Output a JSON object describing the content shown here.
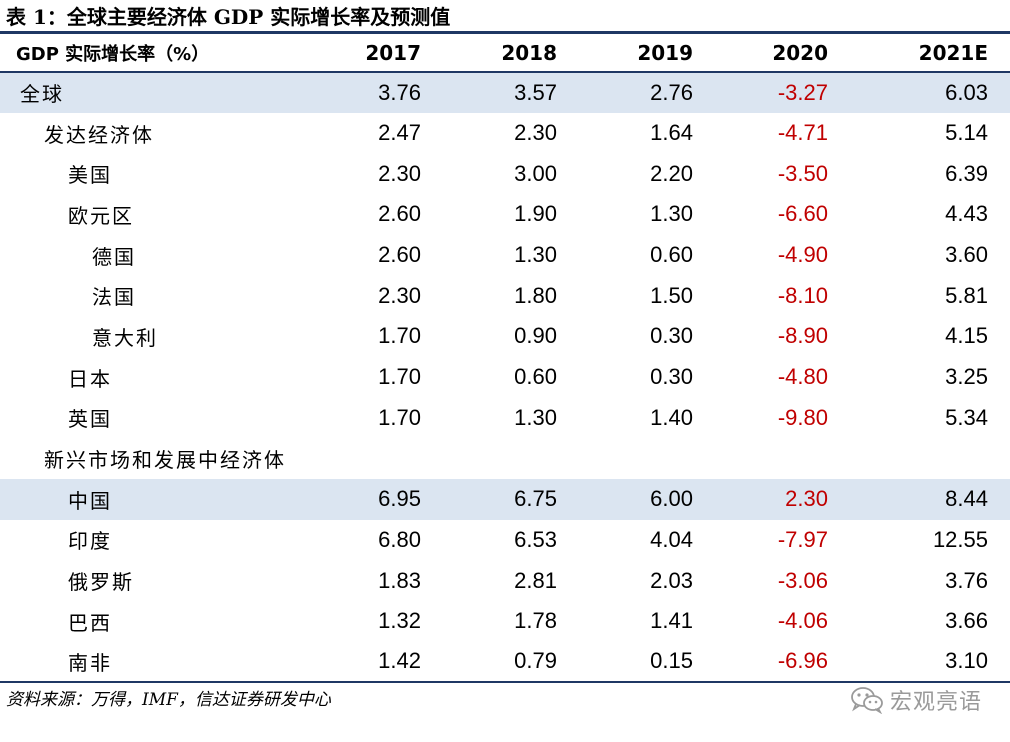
{
  "title": "表 1：全球主要经济体 GDP 实际增长率及预测值",
  "header": {
    "name": "GDP 实际增长率（%）",
    "years": [
      "2017",
      "2018",
      "2019",
      "2020",
      "2021E"
    ]
  },
  "rows": [
    {
      "name": "全球",
      "values": [
        "3.76",
        "3.57",
        "2.76",
        "-3.27",
        "6.03"
      ]
    },
    {
      "name": "发达经济体",
      "values": [
        "2.47",
        "2.30",
        "1.64",
        "-4.71",
        "5.14"
      ]
    },
    {
      "name": "美国",
      "values": [
        "2.30",
        "3.00",
        "2.20",
        "-3.50",
        "6.39"
      ]
    },
    {
      "name": "欧元区",
      "values": [
        "2.60",
        "1.90",
        "1.30",
        "-6.60",
        "4.43"
      ]
    },
    {
      "name": "德国",
      "values": [
        "2.60",
        "1.30",
        "0.60",
        "-4.90",
        "3.60"
      ]
    },
    {
      "name": "法国",
      "values": [
        "2.30",
        "1.80",
        "1.50",
        "-8.10",
        "5.81"
      ]
    },
    {
      "name": "意大利",
      "values": [
        "1.70",
        "0.90",
        "0.30",
        "-8.90",
        "4.15"
      ]
    },
    {
      "name": "日本",
      "values": [
        "1.70",
        "0.60",
        "0.30",
        "-4.80",
        "3.25"
      ]
    },
    {
      "name": "英国",
      "values": [
        "1.70",
        "1.30",
        "1.40",
        "-9.80",
        "5.34"
      ]
    },
    {
      "name": "新兴市场和发展中经济体",
      "values": [
        "",
        "",
        "",
        "",
        ""
      ]
    },
    {
      "name": "中国",
      "values": [
        "6.95",
        "6.75",
        "6.00",
        "2.30",
        "8.44"
      ]
    },
    {
      "name": "印度",
      "values": [
        "6.80",
        "6.53",
        "4.04",
        "-7.97",
        "12.55"
      ]
    },
    {
      "name": "俄罗斯",
      "values": [
        "1.83",
        "2.81",
        "2.03",
        "-3.06",
        "3.76"
      ]
    },
    {
      "name": "巴西",
      "values": [
        "1.32",
        "1.78",
        "1.41",
        "-4.06",
        "3.66"
      ]
    },
    {
      "name": "南非",
      "values": [
        "1.42",
        "0.79",
        "0.15",
        "-6.96",
        "3.10"
      ]
    }
  ],
  "source": "资料来源：万得，IMF，信达证券研发中心",
  "watermark": {
    "text": "宏观亮语",
    "icon": "wechat-icon"
  },
  "colors": {
    "accent": "#1f3864",
    "highlight": "#dbe5f1",
    "year_2020": "#c00000",
    "text": "#000000"
  }
}
